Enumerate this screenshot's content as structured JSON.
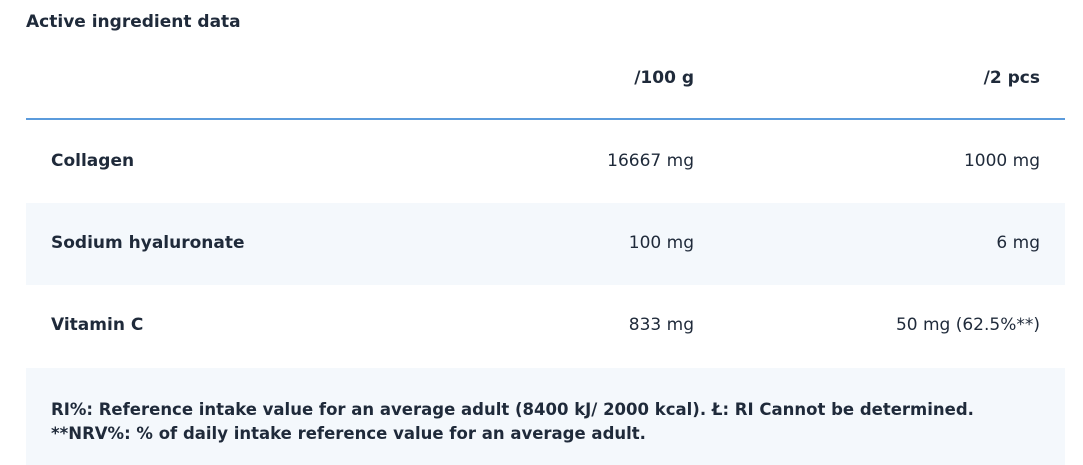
{
  "title": "Active ingredient data",
  "columns": [
    "/100 g",
    "/2 pcs"
  ],
  "rows": [
    {
      "name": "Collagen",
      "per100g": "16667 mg",
      "per2pcs": "1000 mg"
    },
    {
      "name": "Sodium hyaluronate",
      "per100g": "100 mg",
      "per2pcs": "6 mg"
    },
    {
      "name": "Vitamin C",
      "per100g": "833 mg",
      "per2pcs": "50 mg (62.5%**)"
    }
  ],
  "footnotes": [
    "RI%: Reference intake value for an average adult (8400 kJ/ 2000 kcal). Ł: RI Cannot be determined.",
    "**NRV%: % of daily intake reference value for an average adult."
  ],
  "colors": {
    "accent_line": "#5b9bdc",
    "alt_row": "#f4f8fc",
    "text": "#1f2a3a"
  }
}
